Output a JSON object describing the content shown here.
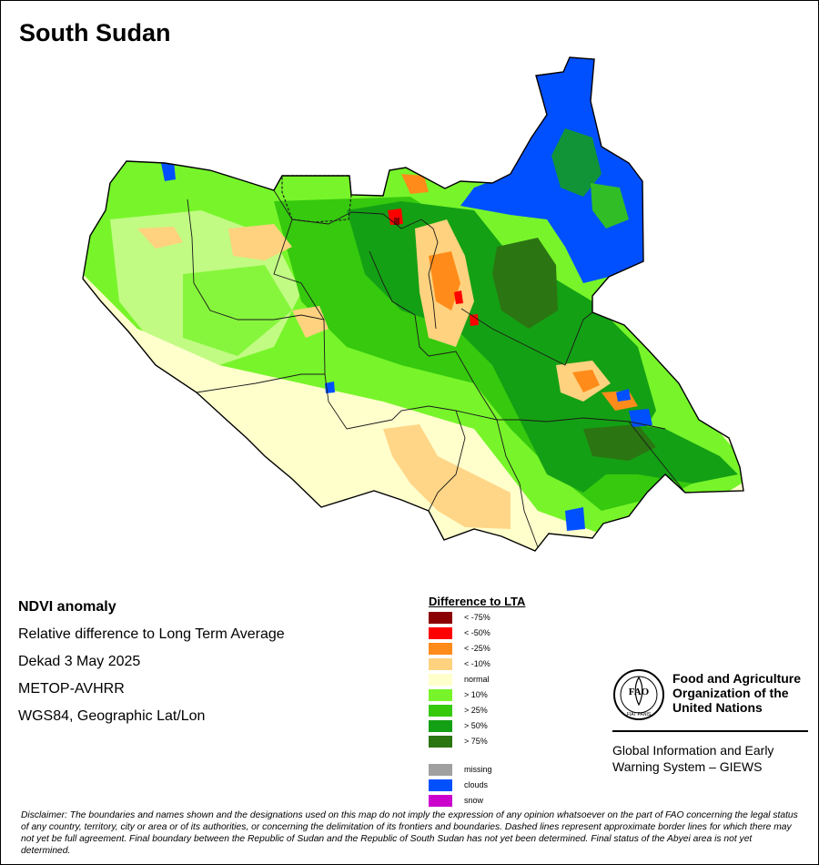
{
  "title": "South Sudan",
  "info": {
    "heading": "NDVI anomaly",
    "subtitle": "Relative difference to Long Term Average",
    "period": "Dekad 3 May 2025",
    "sensor": "METOP-AVHRR",
    "projection": "WGS84, Geographic Lat/Lon"
  },
  "legend": {
    "title": "Difference to LTA",
    "classes": [
      {
        "label": "< -75%",
        "color": "#8b0000"
      },
      {
        "label": "< -50%",
        "color": "#ff0000"
      },
      {
        "label": "< -25%",
        "color": "#ff8c1a"
      },
      {
        "label": "< -10%",
        "color": "#ffd27f"
      },
      {
        "label": "normal",
        "color": "#ffffcc"
      },
      {
        "label": "> 10%",
        "color": "#77f52a"
      },
      {
        "label": "> 25%",
        "color": "#36c90e"
      },
      {
        "label": "> 50%",
        "color": "#14a014"
      },
      {
        "label": "> 75%",
        "color": "#2b7512"
      }
    ],
    "other": [
      {
        "label": "missing",
        "color": "#a0a0a0"
      },
      {
        "label": "clouds",
        "color": "#0050ff"
      },
      {
        "label": "snow",
        "color": "#cc00cc"
      }
    ]
  },
  "logo": {
    "org_line1": "Food and Agriculture",
    "org_line2": "Organization of the",
    "org_line3": "United Nations",
    "emblem_text": "FAO",
    "emblem_motto": "FIAT PANIS",
    "system_line1": "Global Information and Early",
    "system_line2": "Warning System – GIEWS"
  },
  "disclaimer": "Disclaimer: The boundaries and names shown and the designations used on this map do not imply the expression of any opinion whatsoever on the part of FAO concerning the legal status of any country, territory, city or area or of its authorities, or concerning the delimitation of its frontiers and boundaries. Dashed lines represent approximate border lines for which there may not yet be full agreement.  Final boundary between the Republic of Sudan and the Republic of South Sudan has not yet been determined. Final status of the Abyei area is not yet determined.",
  "map_icon": "ndvi-anomaly-raster"
}
